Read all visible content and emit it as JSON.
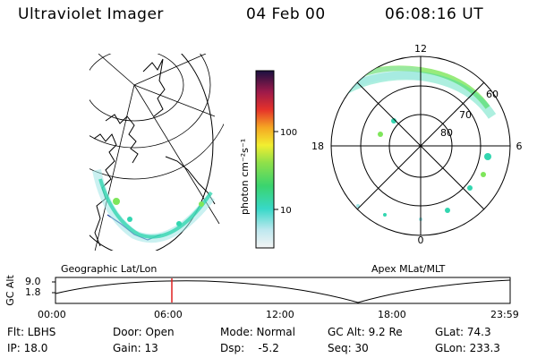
{
  "header": {
    "instrument": "Ultraviolet Imager",
    "date": "04 Feb 00",
    "time": "06:08:16 UT"
  },
  "colorbar": {
    "unit_label": "photon cm⁻²s⁻¹",
    "ticks": [
      "100",
      "10"
    ]
  },
  "polar_plot": {
    "hour_labels": {
      "top": "12",
      "left": "18",
      "right": "6",
      "bottom": "0"
    },
    "lat_labels": [
      "60",
      "70",
      "80"
    ]
  },
  "panel_labels": {
    "left": "Geographic Lat/Lon",
    "right": "Apex MLat/MLT"
  },
  "altitude_plot": {
    "axis_label": "GC Alt",
    "y_ticks": [
      "9.0",
      "1.8"
    ],
    "time_ticks": [
      "00:00",
      "06:00",
      "12:00",
      "18:00",
      "23:59"
    ],
    "current_time_marker": "06:08"
  },
  "status": {
    "filter": "Flt: LBHS",
    "door": "Door: Open",
    "mode": "Mode: Normal",
    "gc_alt": "GC Alt: 9.2 Re",
    "glat": "GLat:  74.3",
    "ip": "IP: 18.0",
    "gain": "Gain: 13",
    "dsp": "Dsp:    -5.2",
    "seq": "Seq: 30",
    "glon": "GLon: 233.3"
  },
  "colors": {
    "marker": "#e02020",
    "aurora": "#33d6b0",
    "aurora_bright": "#7ee65a"
  }
}
